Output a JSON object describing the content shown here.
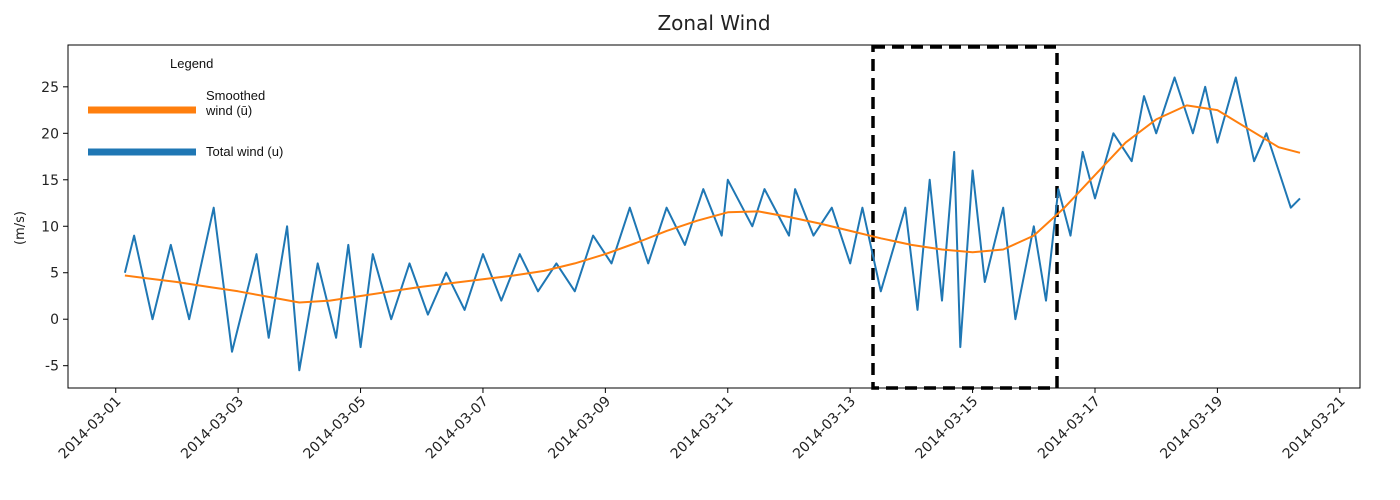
{
  "chart_data": {
    "type": "line",
    "title": "Zonal Wind",
    "y_label": "(m/s)",
    "legend_title": "Legend",
    "legend_position": "upper left",
    "xlim": [
      0.22,
      21.33
    ],
    "ylim": [
      -7.4,
      29.5
    ],
    "yticks": [
      -5,
      0,
      5,
      10,
      15,
      20,
      25
    ],
    "xticks": [
      {
        "value": 1,
        "label": "2014-03-01"
      },
      {
        "value": 3,
        "label": "2014-03-03"
      },
      {
        "value": 5,
        "label": "2014-03-05"
      },
      {
        "value": 7,
        "label": "2014-03-07"
      },
      {
        "value": 9,
        "label": "2014-03-09"
      },
      {
        "value": 11,
        "label": "2014-03-11"
      },
      {
        "value": 13,
        "label": "2014-03-13"
      },
      {
        "value": 15,
        "label": "2014-03-15"
      },
      {
        "value": 17,
        "label": "2014-03-17"
      },
      {
        "value": 19,
        "label": "2014-03-19"
      },
      {
        "value": 21,
        "label": "2014-03-21"
      }
    ],
    "series": [
      {
        "name": "Smoothed wind (ū)",
        "color": "#ff7f0e",
        "x": [
          1.15,
          1.5,
          2,
          2.5,
          3,
          3.5,
          4,
          4.5,
          5,
          5.5,
          6,
          6.5,
          7,
          7.5,
          8,
          8.5,
          9,
          9.5,
          10,
          10.5,
          11,
          11.5,
          12,
          12.5,
          13,
          13.5,
          14,
          14.5,
          15,
          15.5,
          16,
          16.5,
          17,
          17.5,
          18,
          18.5,
          19,
          19.5,
          20,
          20.35
        ],
        "values": [
          4.7,
          4.4,
          4.0,
          3.5,
          3.0,
          2.4,
          1.8,
          2.0,
          2.5,
          3.0,
          3.5,
          3.9,
          4.3,
          4.7,
          5.2,
          6.0,
          7.0,
          8.2,
          9.5,
          10.6,
          11.5,
          11.6,
          11.0,
          10.3,
          9.5,
          8.7,
          8.0,
          7.5,
          7.2,
          7.5,
          9.0,
          12.0,
          15.5,
          19.0,
          21.5,
          23.0,
          22.5,
          20.5,
          18.5,
          17.9
        ]
      },
      {
        "name": "Total wind (u)",
        "color": "#1f77b4",
        "x": [
          1.15,
          1.3,
          1.6,
          1.9,
          2.2,
          2.6,
          2.9,
          3.3,
          3.5,
          3.8,
          4.0,
          4.3,
          4.6,
          4.8,
          5.0,
          5.2,
          5.5,
          5.8,
          6.1,
          6.4,
          6.7,
          7.0,
          7.3,
          7.6,
          7.9,
          8.2,
          8.5,
          8.8,
          9.1,
          9.4,
          9.7,
          10.0,
          10.3,
          10.6,
          10.9,
          11.0,
          11.4,
          11.6,
          12.0,
          12.1,
          12.4,
          12.7,
          13.0,
          13.2,
          13.5,
          13.9,
          14.1,
          14.3,
          14.5,
          14.7,
          14.8,
          15.0,
          15.2,
          15.5,
          15.7,
          16.0,
          16.2,
          16.4,
          16.6,
          16.8,
          17.0,
          17.3,
          17.6,
          17.8,
          18.0,
          18.3,
          18.6,
          18.8,
          19.0,
          19.3,
          19.6,
          19.8,
          20.0,
          20.2,
          20.35
        ],
        "values": [
          5,
          9,
          0,
          8,
          0,
          12,
          -3.5,
          7,
          -2,
          10,
          -5.5,
          6,
          -2,
          8,
          -3,
          7,
          0,
          6,
          0.5,
          5,
          1,
          7,
          2,
          7,
          3,
          6,
          3,
          9,
          6,
          12,
          6,
          12,
          8,
          14,
          9,
          15,
          10,
          14,
          9,
          14,
          9,
          12,
          6,
          12,
          3,
          12,
          1,
          15,
          2,
          18,
          -3,
          16,
          4,
          12,
          0,
          10,
          2,
          14,
          9,
          18,
          13,
          20,
          17,
          24,
          20,
          26,
          20,
          25,
          19,
          26,
          17,
          20,
          16,
          12,
          13
        ]
      }
    ]
  }
}
